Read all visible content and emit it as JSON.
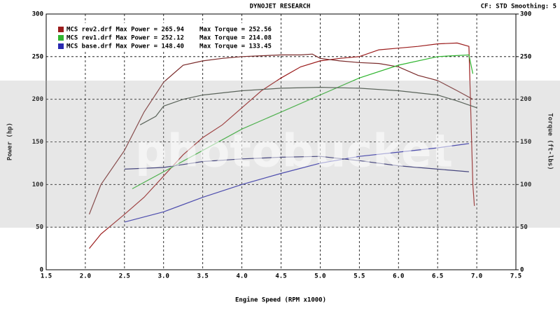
{
  "chart_data": {
    "type": "line",
    "header_left": "DYNOJET RESEARCH",
    "header_right": "CF: STD  Smoothing: 5",
    "xlabel": "Engine Speed (RPM x1000)",
    "ylabel": "Power (hp)",
    "y2label": "Torque (ft-lbs)",
    "watermark": "photobucket",
    "xlim": [
      1.5,
      7.5
    ],
    "xticks": [
      1.5,
      {
        "value": 2,
        "label": "2.0"
      },
      2.5,
      {
        "value": 3,
        "label": "3.0"
      },
      3.5,
      {
        "value": 4,
        "label": "4.0"
      },
      4.5,
      {
        "value": 5,
        "label": "5.0"
      },
      5.5,
      {
        "value": 6,
        "label": "6.0"
      },
      6.5,
      {
        "value": 7,
        "label": "7.0"
      },
      7.5
    ],
    "ylim": [
      0,
      300
    ],
    "yticks": [
      0,
      50,
      100,
      150,
      200,
      250,
      300
    ],
    "y2lim": [
      0,
      300
    ],
    "y2ticks": [
      0,
      50,
      100,
      150,
      200,
      250,
      300
    ],
    "grid": true,
    "series": [
      {
        "name": "MCS rev2.drf Max Power = 265.94",
        "color": "#9b1c1c",
        "x": [
          2.05,
          2.2,
          2.5,
          2.75,
          3.0,
          3.25,
          3.5,
          3.75,
          4.0,
          4.25,
          4.5,
          4.75,
          5.0,
          5.25,
          5.5,
          5.75,
          6.0,
          6.25,
          6.5,
          6.75,
          6.9,
          6.95,
          6.97
        ],
        "values": [
          25,
          42,
          65,
          85,
          110,
          135,
          155,
          170,
          190,
          210,
          225,
          238,
          245,
          248,
          250,
          258,
          260,
          262,
          265,
          266,
          262,
          100,
          75
        ]
      },
      {
        "name": "Max Torque = 252.56",
        "color": "#7a2a2a",
        "axis": "y2",
        "x": [
          2.05,
          2.2,
          2.5,
          2.75,
          3.0,
          3.25,
          3.5,
          3.75,
          4.0,
          4.25,
          4.5,
          4.75,
          4.9,
          5.0,
          5.25,
          5.5,
          5.75,
          6.0,
          6.25,
          6.5,
          6.75,
          6.95
        ],
        "values": [
          65,
          100,
          140,
          185,
          220,
          240,
          245,
          248,
          250,
          251,
          252,
          252,
          253,
          248,
          245,
          243,
          242,
          238,
          228,
          222,
          210,
          200
        ]
      },
      {
        "name": "MCS rev1.drf Max Power = 252.12",
        "color": "#2fb52f",
        "x": [
          2.6,
          3.0,
          3.5,
          4.0,
          4.5,
          5.0,
          5.5,
          6.0,
          6.5,
          6.9,
          6.95
        ],
        "values": [
          95,
          115,
          140,
          165,
          185,
          205,
          225,
          240,
          250,
          252,
          230
        ]
      },
      {
        "name": "Max Torque = 214.08",
        "color": "#3d4a3d",
        "axis": "y2",
        "x": [
          2.7,
          2.9,
          3.0,
          3.25,
          3.5,
          4.0,
          4.5,
          5.0,
          5.5,
          6.0,
          6.5,
          6.75,
          7.0
        ],
        "values": [
          170,
          180,
          192,
          200,
          205,
          210,
          213,
          214,
          213,
          210,
          205,
          198,
          190
        ]
      },
      {
        "name": "MCS base.drf Max Power = 148.40",
        "color": "#2a2ab0",
        "x": [
          2.5,
          3.0,
          3.5,
          4.0,
          4.5,
          5.0,
          5.5,
          6.0,
          6.5,
          6.9
        ],
        "values": [
          56,
          68,
          85,
          100,
          113,
          125,
          133,
          138,
          143,
          148
        ]
      },
      {
        "name": "Max Torque = 133.45",
        "color": "#22226e",
        "axis": "y2",
        "x": [
          2.5,
          3.0,
          3.5,
          4.0,
          4.5,
          5.0,
          5.5,
          6.0,
          6.5,
          6.9
        ],
        "values": [
          118,
          120,
          127,
          130,
          132,
          133,
          128,
          122,
          118,
          115
        ]
      }
    ]
  }
}
